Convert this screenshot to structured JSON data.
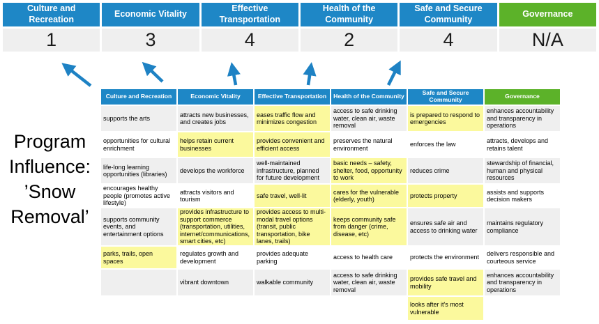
{
  "slide": {
    "title": "Program Influence: ’Snow Removal’"
  },
  "colors": {
    "header_blue": "#1E87C6",
    "header_green": "#5CB229",
    "row_gray": "#EFEFEF",
    "highlight_yellow": "#FBF99D",
    "arrow_blue": "#1E82C4",
    "score_band_gray": "#EFEFEF"
  },
  "summary": {
    "columns": [
      {
        "label": "Culture and Recreation",
        "score": "1",
        "header_color": "#1E87C6"
      },
      {
        "label": "Economic Vitality",
        "score": "3",
        "header_color": "#1E87C6"
      },
      {
        "label": "Effective Transportation",
        "score": "4",
        "header_color": "#1E87C6"
      },
      {
        "label": "Health of the Community",
        "score": "2",
        "header_color": "#1E87C6"
      },
      {
        "label": "Safe and Secure Community",
        "score": "4",
        "header_color": "#1E87C6"
      },
      {
        "label": "Governance",
        "score": "N/A",
        "header_color": "#5CB229"
      }
    ]
  },
  "matrix": {
    "headers": [
      {
        "label": "Culture and Recreation",
        "color": "#1E87C6"
      },
      {
        "label": "Economic Vitality",
        "color": "#1E87C6"
      },
      {
        "label": "Effective Transportation",
        "color": "#1E87C6"
      },
      {
        "label": "Health of the Community",
        "color": "#1E87C6"
      },
      {
        "label": "Safe and Secure Community",
        "color": "#1E87C6"
      },
      {
        "label": "Governance",
        "color": "#5CB229"
      }
    ],
    "rows": [
      {
        "shade": "gray",
        "cells": [
          {
            "text": "supports the arts",
            "highlight": false
          },
          {
            "text": "attracts new businesses, and creates jobs",
            "highlight": false
          },
          {
            "text": "eases traffic flow and minimizes congestion",
            "highlight": true
          },
          {
            "text": "access to safe drinking water, clean air, waste removal",
            "highlight": false
          },
          {
            "text": "is prepared to respond to emergencies",
            "highlight": true
          },
          {
            "text": "enhances accountability and transparency in operations",
            "highlight": false
          }
        ]
      },
      {
        "shade": "white",
        "cells": [
          {
            "text": "opportunities for cultural enrichment",
            "highlight": false
          },
          {
            "text": "helps retain current businesses",
            "highlight": true
          },
          {
            "text": "provides convenient and efficient access",
            "highlight": true
          },
          {
            "text": "preserves the natural environment",
            "highlight": false
          },
          {
            "text": "enforces the law",
            "highlight": false
          },
          {
            "text": "attracts, develops and retains talent",
            "highlight": false
          }
        ]
      },
      {
        "shade": "gray",
        "cells": [
          {
            "text": "life-long learning opportunities (libraries)",
            "highlight": false
          },
          {
            "text": "develops the workforce",
            "highlight": false
          },
          {
            "text": "well-maintained infrastructure, planned for future development",
            "highlight": false
          },
          {
            "text": "basic needs – safety, shelter, food, opportunity to work",
            "highlight": true
          },
          {
            "text": "reduces crime",
            "highlight": false
          },
          {
            "text": "stewardship of financial, human and physical resources",
            "highlight": false
          }
        ]
      },
      {
        "shade": "white",
        "cells": [
          {
            "text": "encourages healthy people (promotes active lifestyle)",
            "highlight": false
          },
          {
            "text": "attracts visitors and tourism",
            "highlight": false
          },
          {
            "text": "safe travel, well-lit",
            "highlight": true
          },
          {
            "text": "cares for the vulnerable (elderly, youth)",
            "highlight": true
          },
          {
            "text": "protects property",
            "highlight": true
          },
          {
            "text": "assists and supports decision makers",
            "highlight": false
          }
        ]
      },
      {
        "shade": "gray",
        "cells": [
          {
            "text": "supports community events, and entertainment options",
            "highlight": false
          },
          {
            "text": "provides infrastructure to support commerce (transportation, utilities, internet/communications, smart cities, etc)",
            "highlight": true
          },
          {
            "text": "provides access to multi-modal travel options (transit, public transportation, bike lanes, trails)",
            "highlight": true
          },
          {
            "text": "keeps community safe from danger (crime, disease, etc)",
            "highlight": true
          },
          {
            "text": "ensures safe air and access to drinking water",
            "highlight": false
          },
          {
            "text": "maintains regulatory compliance",
            "highlight": false
          }
        ]
      },
      {
        "shade": "white",
        "cells": [
          {
            "text": "parks, trails, open spaces",
            "highlight": true
          },
          {
            "text": "regulates growth and development",
            "highlight": false
          },
          {
            "text": "provides adequate parking",
            "highlight": false
          },
          {
            "text": "access to health care",
            "highlight": false
          },
          {
            "text": "protects the environment",
            "highlight": false
          },
          {
            "text": "delivers responsible and courteous service",
            "highlight": false
          }
        ]
      },
      {
        "shade": "gray",
        "cells": [
          {
            "text": "",
            "highlight": false
          },
          {
            "text": "vibrant downtown",
            "highlight": false
          },
          {
            "text": "walkable community",
            "highlight": false
          },
          {
            "text": "access to safe drinking water, clean air, waste removal",
            "highlight": false
          },
          {
            "text": "provides safe travel and mobility",
            "highlight": true
          },
          {
            "text": "enhances accountability and transparency in operations",
            "highlight": false
          }
        ]
      },
      {
        "shade": "white",
        "cells": [
          {
            "text": "",
            "highlight": false
          },
          {
            "text": "",
            "highlight": false
          },
          {
            "text": "",
            "highlight": false
          },
          {
            "text": "",
            "highlight": false
          },
          {
            "text": "looks after it's most vulnerable",
            "highlight": true
          },
          {
            "text": "",
            "highlight": false
          }
        ]
      }
    ]
  }
}
